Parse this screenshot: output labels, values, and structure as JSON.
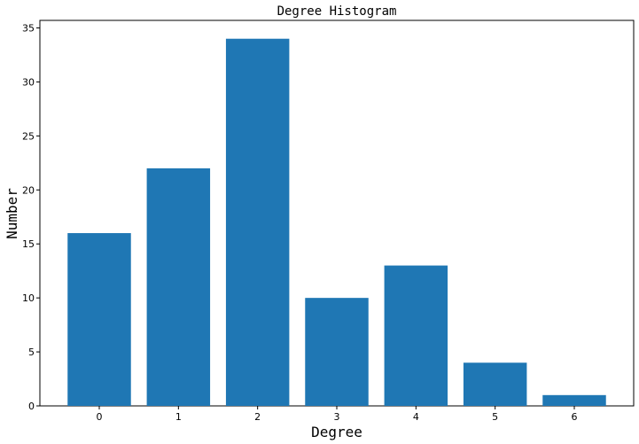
{
  "chart_data": {
    "type": "bar",
    "title": "Degree Histogram",
    "xlabel": "Degree",
    "ylabel": "Number",
    "categories": [
      "0",
      "1",
      "2",
      "3",
      "4",
      "5",
      "6"
    ],
    "values": [
      16,
      22,
      34,
      10,
      13,
      4,
      1
    ],
    "ylim": [
      0,
      35.7
    ],
    "yticks": [
      0,
      5,
      10,
      15,
      20,
      25,
      30,
      35
    ],
    "grid": false,
    "bar_color": "#1f77b4"
  }
}
